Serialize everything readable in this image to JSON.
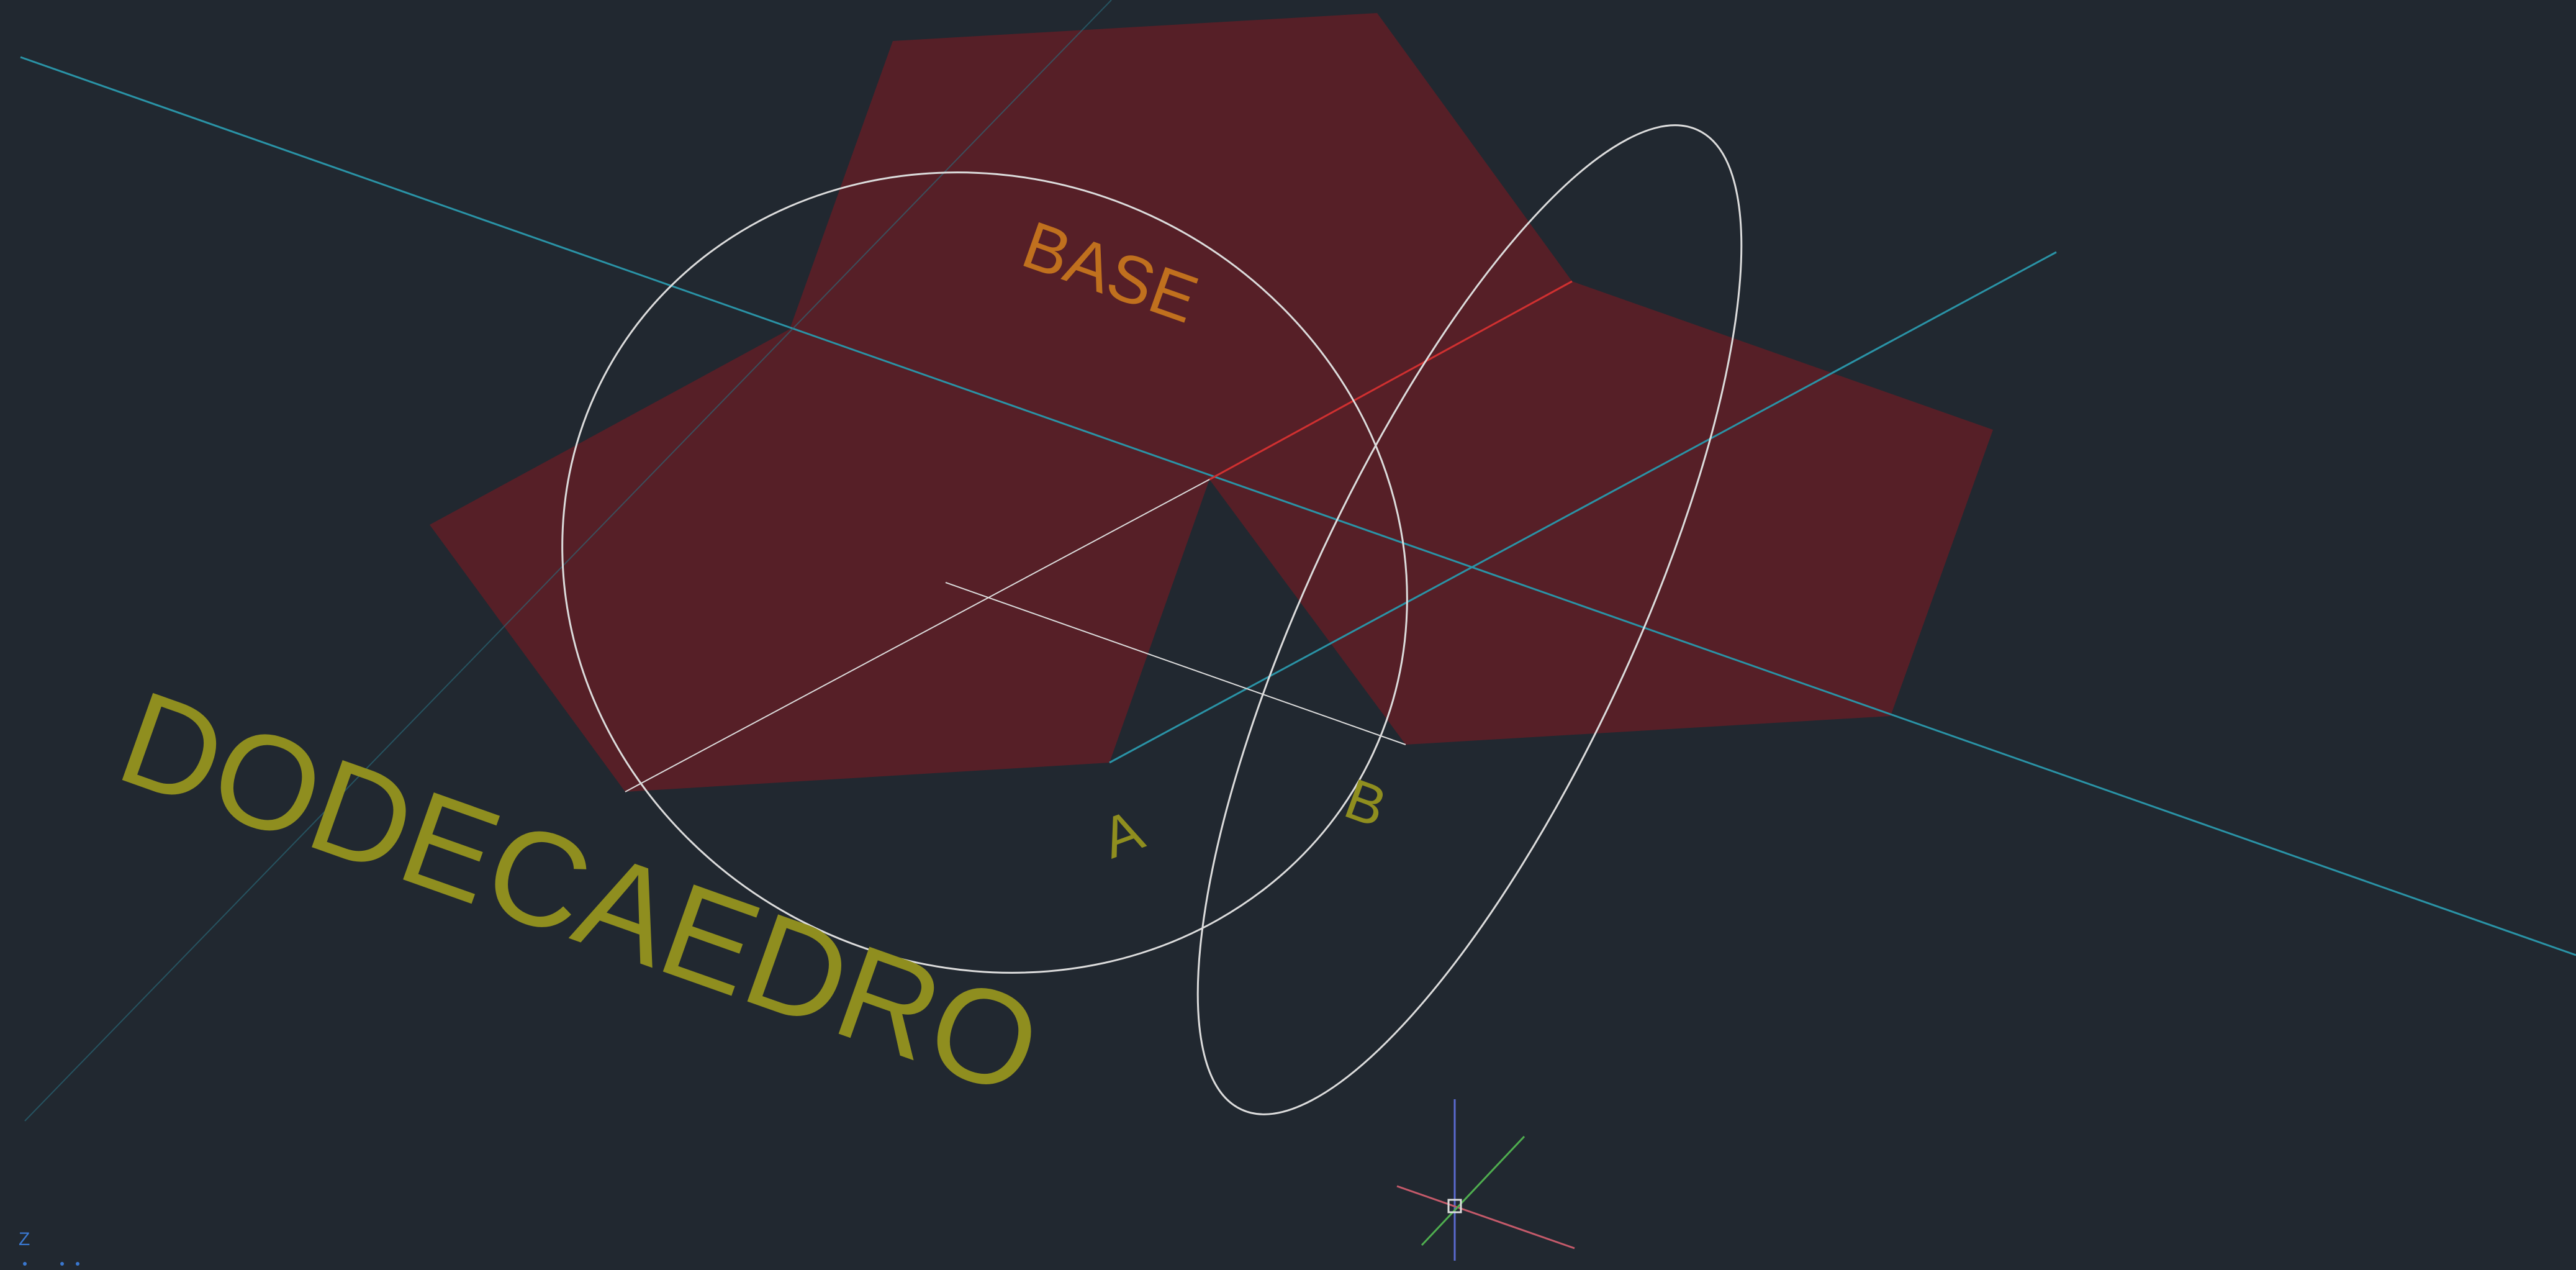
{
  "drawing": {
    "labels": {
      "title": "DODECAEDRO",
      "base": "BASE",
      "point_a": "A",
      "point_b": "B",
      "axis_z": "Z"
    },
    "colors": {
      "background": "#212830",
      "face_fill": "#5a1f27",
      "title_text": "#8f8e1f",
      "base_text": "#c0701e",
      "point_text": "#8f8e1f",
      "construction_line_cyan": "#2a93a6",
      "hinge_line_red": "#d03030",
      "circle_white": "#dcdcdc",
      "ucs_x_red": "#c45a6a",
      "ucs_y_green": "#4fae4f",
      "ucs_z_blue": "#5a6ad0",
      "axis_indicator_blue": "#3a78d0"
    },
    "elements": {
      "faces": "pentagon-faces",
      "circles": "construction-circles",
      "lines": "construction-lines",
      "ucs": "ucs-icon"
    }
  }
}
